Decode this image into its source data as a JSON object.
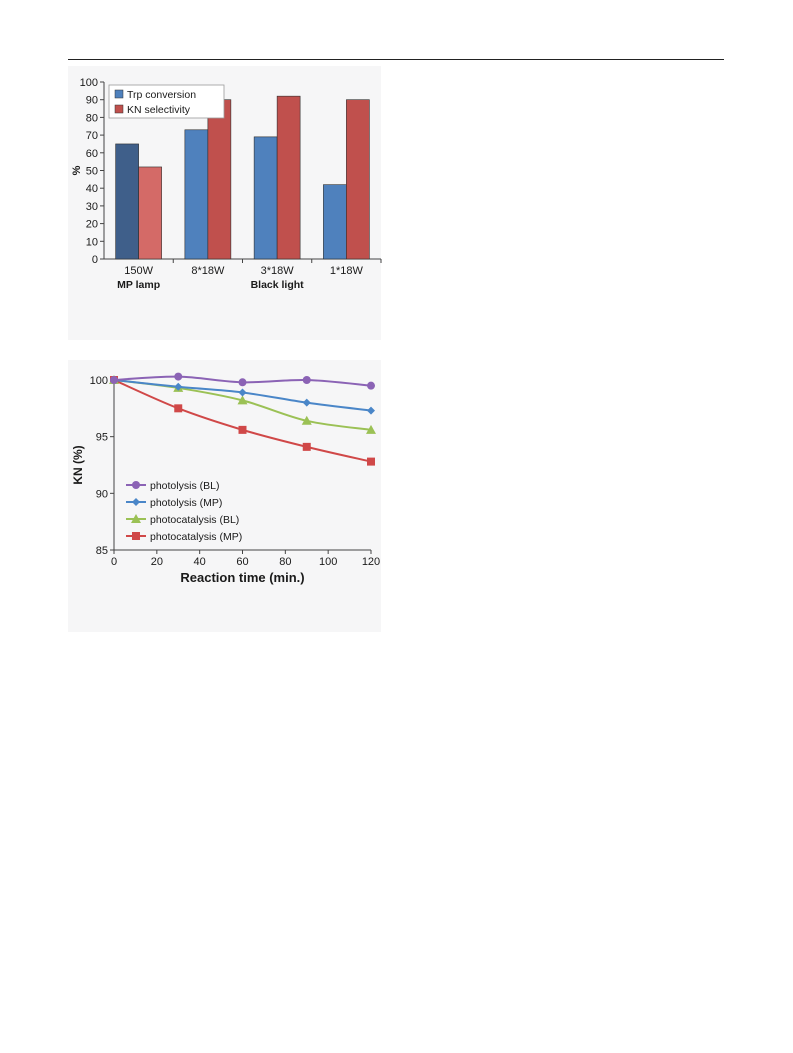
{
  "chart_data": [
    {
      "type": "bar",
      "categories": [
        "150W",
        "8*18W",
        "3*18W",
        "1*18W"
      ],
      "group_labels": [
        {
          "label": "MP lamp",
          "categories": [
            "150W"
          ]
        },
        {
          "label": "Black light",
          "categories": [
            "8*18W",
            "3*18W",
            "1*18W"
          ]
        }
      ],
      "series": [
        {
          "name": "Trp conversion",
          "values": [
            65,
            73,
            69,
            42
          ]
        },
        {
          "name": "KN selectivity",
          "values": [
            52,
            90,
            92,
            90
          ]
        }
      ],
      "colors": {
        "Trp conversion": "#4f81bd",
        "Trp conversion (MP lamp)": "#3f5f8a",
        "KN selectivity": "#c0504d",
        "KN selectivity (MP lamp)": "#d46a67"
      },
      "ylabel": "%",
      "xlabel": "",
      "ylim": [
        0,
        100
      ],
      "yticks": [
        0,
        10,
        20,
        30,
        40,
        50,
        60,
        70,
        80,
        90,
        100
      ],
      "legend": "top-left",
      "grid": false
    },
    {
      "type": "line",
      "xlabel": "Reaction time (min.)",
      "ylabel": "KN (%)",
      "xlim": [
        0,
        120
      ],
      "ylim": [
        85,
        100
      ],
      "xticks": [
        0,
        20,
        40,
        60,
        80,
        100,
        120
      ],
      "yticks": [
        85,
        90,
        95,
        100
      ],
      "legend": "lower-left",
      "grid": false,
      "series": [
        {
          "name": "photolysis (BL)",
          "color": "#8b63b5",
          "marker": "circle",
          "x": [
            0,
            30,
            60,
            90,
            120
          ],
          "y": [
            100,
            100.3,
            99.8,
            100,
            99.5
          ]
        },
        {
          "name": "photolysis (MP)",
          "color": "#4a86c8",
          "marker": "diamond",
          "x": [
            0,
            30,
            60,
            90,
            120
          ],
          "y": [
            100,
            99.4,
            98.9,
            98.0,
            97.3
          ]
        },
        {
          "name": "photocatalysis (BL)",
          "color": "#9bc155",
          "marker": "triangle",
          "x": [
            0,
            30,
            60,
            90,
            120
          ],
          "y": [
            100,
            99.3,
            98.2,
            96.4,
            95.6
          ]
        },
        {
          "name": "photocatalysis (MP)",
          "color": "#d04848",
          "marker": "square",
          "x": [
            0,
            30,
            60,
            90,
            120
          ],
          "y": [
            100,
            97.5,
            95.6,
            94.1,
            92.8
          ]
        }
      ]
    }
  ]
}
